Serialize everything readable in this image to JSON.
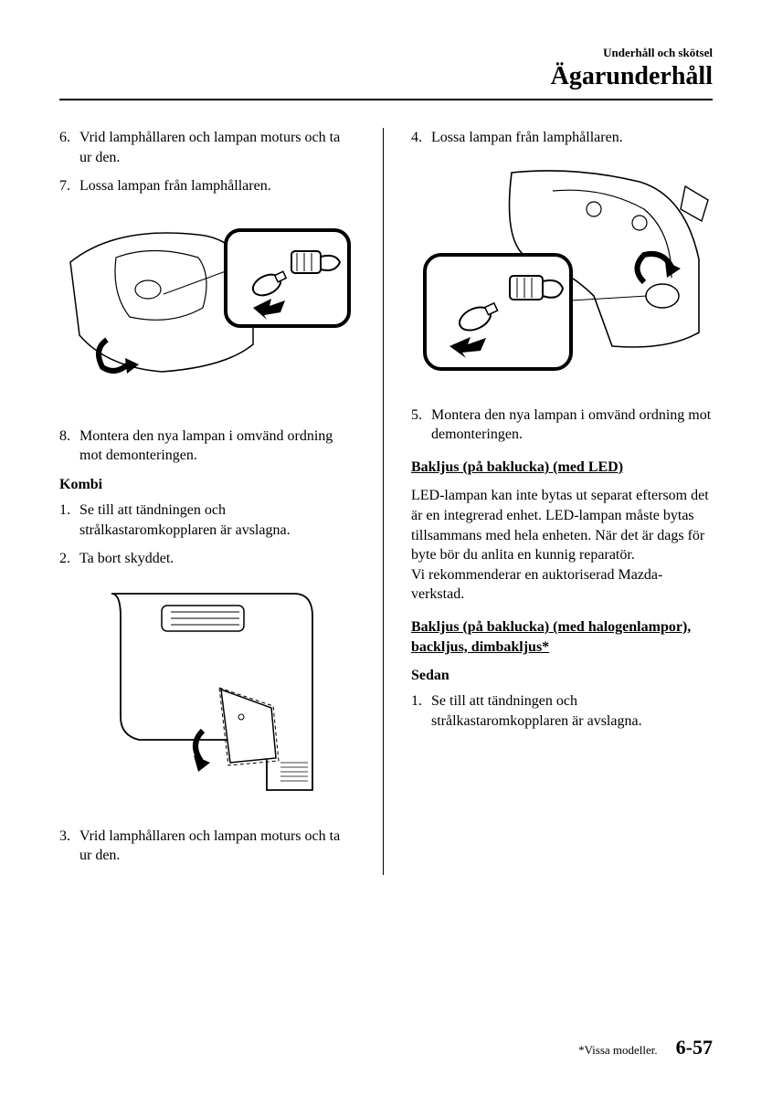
{
  "header": {
    "small": "Underhåll och skötsel",
    "large": "Ägarunderhåll"
  },
  "left": {
    "steps1": [
      {
        "n": "6.",
        "t": "Vrid lamphållaren och lampan moturs och ta ur den."
      },
      {
        "n": "7.",
        "t": "Lossa lampan från lamphållaren."
      }
    ],
    "steps2": [
      {
        "n": "8.",
        "t": "Montera den nya lampan i omvänd ordning mot demonteringen."
      }
    ],
    "kombi_label": "Kombi",
    "steps3": [
      {
        "n": "1.",
        "t": "Se till att tändningen och strålkastaromkopplaren är avslagna."
      },
      {
        "n": "2.",
        "t": "Ta bort skyddet."
      }
    ],
    "steps4": [
      {
        "n": "3.",
        "t": "Vrid lamphållaren och lampan moturs och ta ur den."
      }
    ]
  },
  "right": {
    "steps1": [
      {
        "n": "4.",
        "t": "Lossa lampan från lamphållaren."
      }
    ],
    "steps2": [
      {
        "n": "5.",
        "t": "Montera den nya lampan i omvänd ordning mot demonteringen."
      }
    ],
    "heading1": "Bakljus (på baklucka) (med LED)",
    "para1": "LED-lampan kan inte bytas ut separat eftersom det är en integrerad enhet. LED-lampan måste bytas tillsammans med hela enheten. När det är dags för byte bör du anlita en kunnig reparatör.\nVi rekommenderar en auktoriserad Mazda-verkstad.",
    "heading2": "Bakljus (på baklucka) (med halogenlampor), backljus, dimbakljus*",
    "sedan_label": "Sedan",
    "steps3": [
      {
        "n": "1.",
        "t": "Se till att tändningen och strålkastaromkopplaren är avslagna."
      }
    ]
  },
  "footer": {
    "note": "*Vissa modeller.",
    "page": "6-57"
  },
  "figures": {
    "stroke": "#000000",
    "fill_white": "#ffffff",
    "fill_black": "#000000"
  }
}
